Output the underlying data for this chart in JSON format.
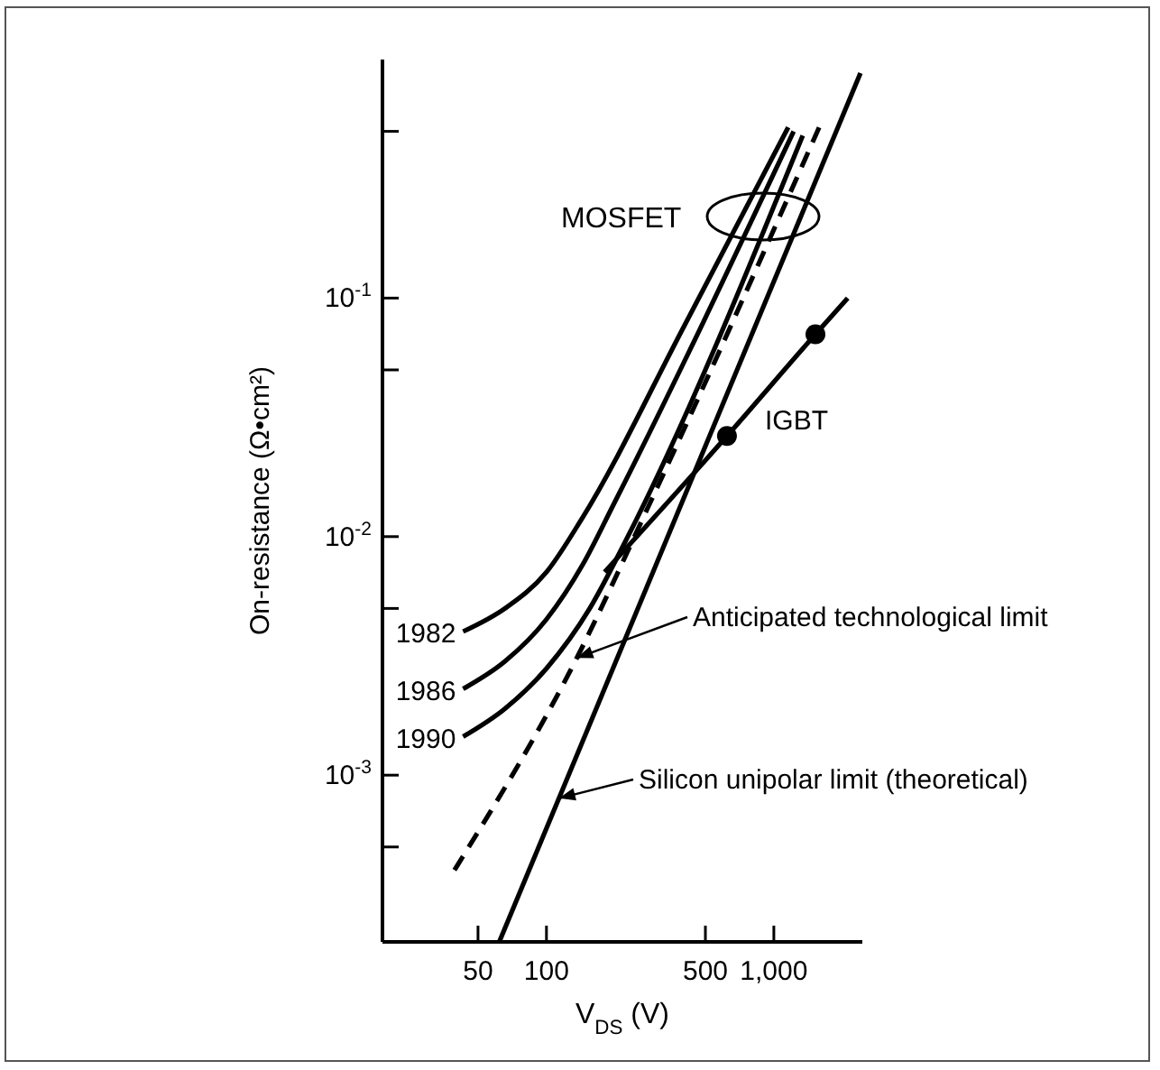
{
  "chart_data": {
    "type": "line",
    "xlabel": "V$_{DS}$ (V)",
    "ylabel": "On-resistance (Ω•cm²)",
    "log": "xy",
    "xlim": [
      19,
      2450
    ],
    "ylim": [
      0.0002,
      1
    ],
    "xticks": [
      50,
      100,
      500,
      {
        "value": 1000,
        "label": "1,000"
      }
    ],
    "yticks": [
      {
        "value": 0.1,
        "label": "10$^{-1}$"
      },
      {
        "value": 0.01,
        "label": "10$^{-2}$"
      },
      {
        "value": 0.001,
        "label": "10$^{-3}$"
      },
      {
        "value": 0.5,
        "label": null
      },
      {
        "value": 0.05,
        "label": null
      },
      {
        "value": 0.005,
        "label": null
      },
      {
        "value": 0.0005,
        "label": null
      }
    ],
    "grid": false,
    "marker": "none",
    "annotations": [
      "MOSFET",
      {
        "text": "Anticipated technological limit",
        "x": 136,
        "y": 0.0031
      },
      {
        "text": "Silicon unipolar limit (theoretical)",
        "x": 113.6,
        "y": 0.0008
      }
    ],
    "series": [
      {
        "name": "1982",
        "color": "#000000",
        "line_style": "solid",
        "x": [
          43,
          65.7,
          100,
          144,
          408,
          1157
        ],
        "values": [
          0.004,
          0.005,
          0.0071,
          0.012,
          0.078,
          0.52
        ]
      },
      {
        "name": "1986",
        "color": "#000000",
        "line_style": "solid",
        "x": [
          43,
          65.7,
          100,
          144,
          197,
          1222
        ],
        "values": [
          0.0023,
          0.003,
          0.0045,
          0.0076,
          0.0136,
          0.5
        ]
      },
      {
        "name": "1990",
        "color": "#000000",
        "line_style": "solid",
        "x": [
          43,
          65.7,
          100,
          155,
          223,
          1340
        ],
        "values": [
          0.00145,
          0.0019,
          0.0028,
          0.005,
          0.0096,
          0.48
        ]
      },
      {
        "color": "#000000",
        "line_style": "dashed",
        "x": [
          39.4,
          136,
          283,
          1607
        ],
        "values": [
          0.0004,
          0.0031,
          0.0136,
          0.537
        ]
      },
      {
        "color": "#000000",
        "line_style": "solid",
        "x": [
          62,
          2404
        ],
        "values": [
          0.0002,
          0.877
        ]
      },
      {
        "name": "IGBT",
        "color": "#000000",
        "line_style": "solid",
        "x": [
          180,
          622,
          1524,
          2113
        ],
        "values": [
          0.0071,
          0.0264,
          0.0705,
          0.1
        ]
      },
      {
        "type": "scatter",
        "marker": "circle",
        "color": "#000000",
        "x": [
          622,
          1524
        ],
        "values": [
          0.0264,
          0.0705
        ]
      }
    ]
  }
}
